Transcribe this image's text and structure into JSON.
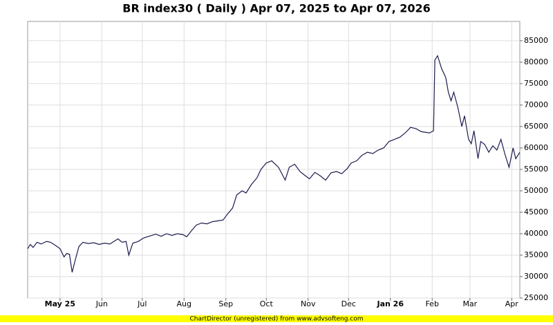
{
  "chart_data": {
    "type": "line",
    "title": "BR index30 ( Daily ) Apr 07, 2025 to Apr 07, 2026",
    "footer": "ChartDirector (unregistered) from www.advsofteng.com",
    "color": "#1a1a4e",
    "grid": true,
    "xlim": [
      "2025-04-07",
      "2026-04-07"
    ],
    "xticks": [
      {
        "value": "2025-05-01",
        "label": "May 25"
      },
      {
        "value": "2025-06-01",
        "label": "Jun"
      },
      {
        "value": "2025-07-01",
        "label": "Jul"
      },
      {
        "value": "2025-08-01",
        "label": "Aug"
      },
      {
        "value": "2025-09-01",
        "label": "Sep"
      },
      {
        "value": "2025-10-01",
        "label": "Oct"
      },
      {
        "value": "2025-11-01",
        "label": "Nov"
      },
      {
        "value": "2025-12-01",
        "label": "Dec"
      },
      {
        "value": "2026-01-01",
        "label": "Jan 26"
      },
      {
        "value": "2026-02-01",
        "label": "Feb"
      },
      {
        "value": "2026-03-01",
        "label": "Mar"
      },
      {
        "value": "2026-04-01",
        "label": "Apr"
      }
    ],
    "ylim": [
      25000,
      89500
    ],
    "yticks": [
      25000,
      30000,
      35000,
      40000,
      45000,
      50000,
      55000,
      60000,
      65000,
      70000,
      75000,
      80000,
      85000
    ],
    "x": [
      "2025-04-07",
      "2025-04-09",
      "2025-04-11",
      "2025-04-14",
      "2025-04-17",
      "2025-04-21",
      "2025-04-24",
      "2025-04-28",
      "2025-05-01",
      "2025-05-04",
      "2025-05-06",
      "2025-05-08",
      "2025-05-10",
      "2025-05-12",
      "2025-05-15",
      "2025-05-18",
      "2025-05-22",
      "2025-05-26",
      "2025-05-30",
      "2025-06-03",
      "2025-06-07",
      "2025-06-10",
      "2025-06-13",
      "2025-06-16",
      "2025-06-19",
      "2025-06-21",
      "2025-06-24",
      "2025-06-28",
      "2025-07-02",
      "2025-07-07",
      "2025-07-11",
      "2025-07-15",
      "2025-07-19",
      "2025-07-23",
      "2025-07-27",
      "2025-07-31",
      "2025-08-03",
      "2025-08-06",
      "2025-08-10",
      "2025-08-14",
      "2025-08-18",
      "2025-08-22",
      "2025-08-26",
      "2025-08-30",
      "2025-09-02",
      "2025-09-06",
      "2025-09-09",
      "2025-09-13",
      "2025-09-16",
      "2025-09-20",
      "2025-09-24",
      "2025-09-27",
      "2025-10-01",
      "2025-10-05",
      "2025-10-10",
      "2025-10-15",
      "2025-10-18",
      "2025-10-22",
      "2025-10-26",
      "2025-10-30",
      "2025-11-02",
      "2025-11-06",
      "2025-11-10",
      "2025-11-14",
      "2025-11-18",
      "2025-11-22",
      "2025-11-26",
      "2025-11-30",
      "2025-12-03",
      "2025-12-07",
      "2025-12-11",
      "2025-12-15",
      "2025-12-19",
      "2025-12-23",
      "2025-12-27",
      "2025-12-31",
      "2026-01-04",
      "2026-01-08",
      "2026-01-12",
      "2026-01-16",
      "2026-01-20",
      "2026-01-24",
      "2026-01-30",
      "2026-02-02",
      "2026-02-03",
      "2026-02-05",
      "2026-02-08",
      "2026-02-11",
      "2026-02-13",
      "2026-02-15",
      "2026-02-17",
      "2026-02-20",
      "2026-02-23",
      "2026-02-25",
      "2026-02-28",
      "2026-03-02",
      "2026-03-04",
      "2026-03-07",
      "2026-03-09",
      "2026-03-12",
      "2026-03-15",
      "2026-03-18",
      "2026-03-21",
      "2026-03-24",
      "2026-03-27",
      "2026-03-30",
      "2026-04-02",
      "2026-04-04",
      "2026-04-07"
    ],
    "values": [
      36500,
      37500,
      36800,
      38000,
      37600,
      38200,
      38000,
      37200,
      36500,
      34600,
      35400,
      35200,
      31000,
      33500,
      37000,
      38000,
      37700,
      37900,
      37500,
      37800,
      37600,
      38200,
      38800,
      38000,
      38200,
      35000,
      37800,
      38200,
      39000,
      39500,
      39900,
      39400,
      40000,
      39600,
      40000,
      39800,
      39300,
      40500,
      42000,
      42500,
      42300,
      42800,
      43000,
      43200,
      44500,
      46000,
      49000,
      50000,
      49500,
      51500,
      53000,
      55000,
      56500,
      57000,
      55500,
      52500,
      55500,
      56200,
      54500,
      53500,
      52800,
      54300,
      53500,
      52500,
      54200,
      54500,
      54000,
      55200,
      56500,
      57000,
      58300,
      59000,
      58700,
      59500,
      60000,
      61500,
      62000,
      62500,
      63500,
      64800,
      64500,
      63800,
      63500,
      64000,
      80500,
      81500,
      78500,
      76500,
      73000,
      71000,
      73000,
      69500,
      65000,
      67500,
      62000,
      61000,
      64000,
      57500,
      61500,
      60800,
      59000,
      60500,
      59500,
      62000,
      58500,
      55500,
      60000,
      57500,
      59000
    ]
  }
}
